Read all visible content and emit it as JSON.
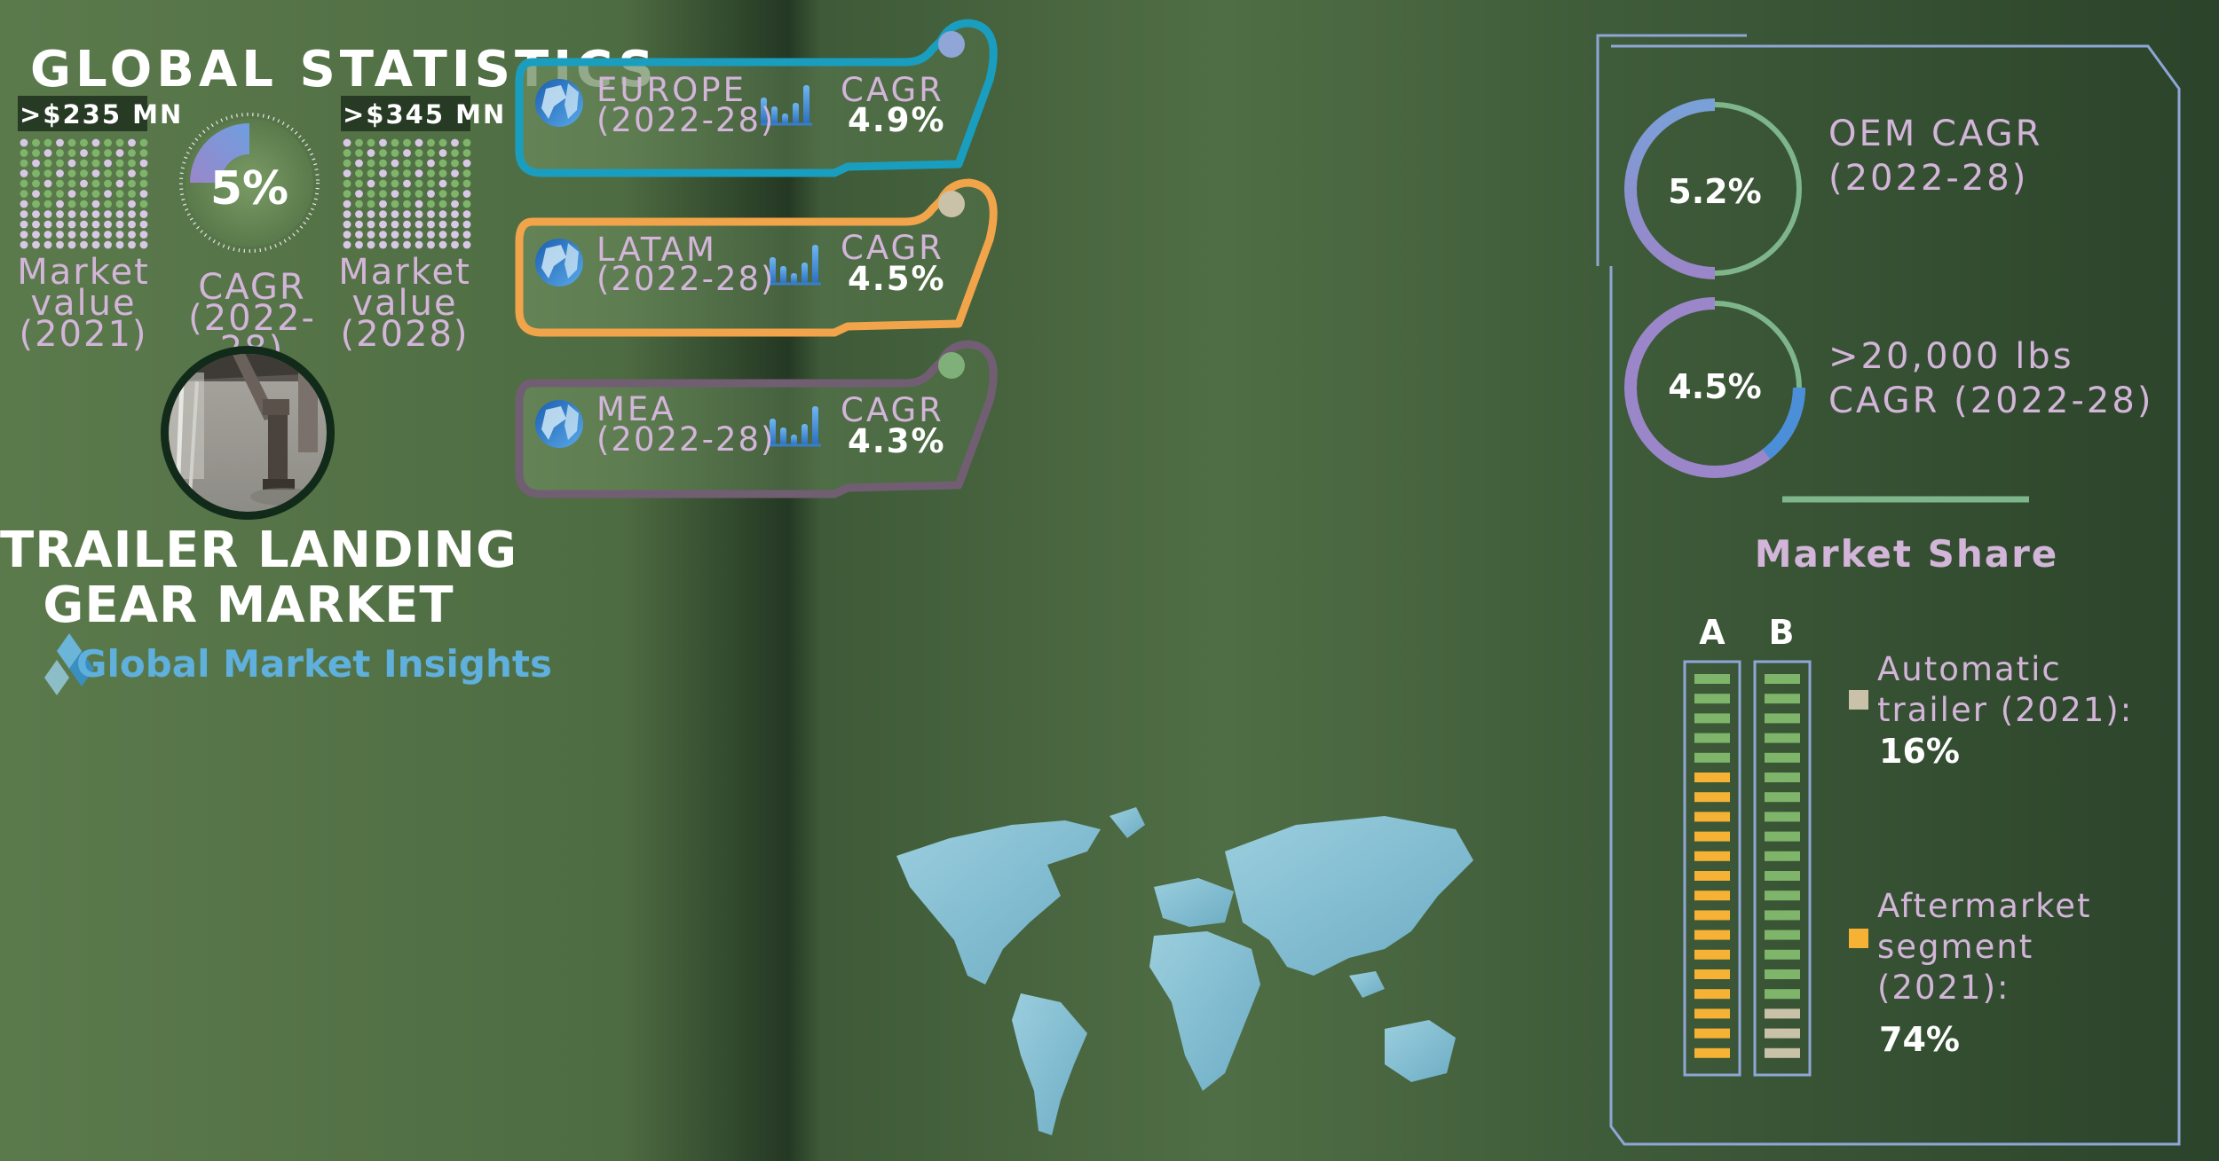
{
  "left_panel": {
    "heading": "GLOBAL STATISTICS",
    "value_2021": ">$235 MN",
    "value_2028": ">$345 MN",
    "cagr_value": "5%",
    "label_2021": [
      "Market",
      "value",
      "(2021)"
    ],
    "label_cagr": [
      "CAGR",
      "(2022-28)"
    ],
    "label_2028": [
      "Market",
      "value",
      "(2028)"
    ],
    "title_line1": "TRAILER LANDING",
    "title_line2": "GEAR MARKET",
    "brand": "Global Market Insights"
  },
  "regions": [
    {
      "name": "EUROPE",
      "period": "(2022-28)",
      "metric": "CAGR",
      "value": "4.9%",
      "color": "#1a9ec0",
      "dot": "#8fa6d6"
    },
    {
      "name": "LATAM",
      "period": "(2022-28)",
      "metric": "CAGR",
      "value": "4.5%",
      "color": "#f2a44a",
      "dot": "#c9c2a8"
    },
    {
      "name": "MEA",
      "period": "(2022-28)",
      "metric": "CAGR",
      "value": "4.3%",
      "color": "#725e72",
      "dot": "#7fb07a"
    }
  ],
  "right_panel": {
    "oem_value": "5.2%",
    "oem_label": [
      "OEM CAGR",
      "(2022-28)"
    ],
    "heavy_value": "4.5%",
    "heavy_label": [
      ">20,000 lbs",
      "CAGR (2022-28)"
    ],
    "market_share_title": "Market Share",
    "bar_a_label": "A",
    "bar_b_label": "B",
    "legend": [
      {
        "label": [
          "Automatic",
          "trailer (2021):"
        ],
        "value": "16%",
        "color": "#c9c2a8"
      },
      {
        "label": [
          "Aftermarket",
          "segment",
          "(2021):"
        ],
        "value": "74%",
        "color": "#f5b235"
      }
    ]
  },
  "chart_data": [
    {
      "type": "table",
      "title": "GLOBAL STATISTICS",
      "rows": [
        {
          "label": "Market value (2021)",
          "value": ">$235 MN"
        },
        {
          "label": "CAGR (2022-28)",
          "value": "5%"
        },
        {
          "label": "Market value (2028)",
          "value": ">$345 MN"
        }
      ]
    },
    {
      "type": "table",
      "rows": [
        {
          "region": "EUROPE",
          "period": "(2022-28)",
          "cagr_percent": 4.9
        },
        {
          "region": "LATAM",
          "period": "(2022-28)",
          "cagr_percent": 4.5
        },
        {
          "region": "MEA",
          "period": "(2022-28)",
          "cagr_percent": 4.3
        }
      ]
    },
    {
      "type": "pie",
      "rows": [
        {
          "label": "OEM CAGR (2022-28)",
          "value_percent": 5.2
        },
        {
          "label": ">20,000 lbs CAGR (2022-28)",
          "value_percent": 4.5
        }
      ]
    },
    {
      "type": "bar",
      "title": "Market Share",
      "categories": [
        "A",
        "B"
      ],
      "series": [
        {
          "name": "Automatic trailer (2021):",
          "values": [
            null,
            16
          ]
        },
        {
          "name": "Aftermarket segment (2021):",
          "values": [
            74,
            null
          ]
        }
      ]
    }
  ]
}
